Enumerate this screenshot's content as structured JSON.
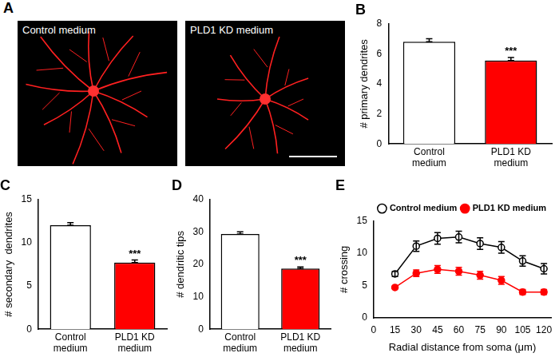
{
  "image_panel": {
    "title": "A",
    "captions": [
      "Control medium",
      "PLD1 KD medium"
    ]
  },
  "chart_data": [
    {
      "type": "bar",
      "title": "B",
      "ylabel": "# primary dendrites",
      "categories": [
        "Control medium",
        "PLD1 KD medium"
      ],
      "values": [
        6.8,
        5.55
      ],
      "errors": [
        0.2,
        0.2
      ],
      "colors": [
        "#ffffff",
        "#ff0000"
      ],
      "ylim": [
        0,
        8
      ],
      "yticks": [
        0,
        2,
        4,
        6,
        8
      ],
      "grid": false,
      "annotations": [
        {
          "category": "PLD1 KD medium",
          "text": "***"
        }
      ]
    },
    {
      "type": "bar",
      "title": "C",
      "ylabel": "# secondary  dendrites",
      "categories": [
        "Control medium",
        "PLD1 KD medium"
      ],
      "values": [
        12.0,
        7.7
      ],
      "errors": [
        0.3,
        0.3
      ],
      "colors": [
        "#ffffff",
        "#ff0000"
      ],
      "ylim": [
        0,
        15
      ],
      "yticks": [
        0,
        5,
        10,
        15
      ],
      "grid": false,
      "annotations": [
        {
          "category": "PLD1 KD medium",
          "text": "***"
        }
      ]
    },
    {
      "type": "bar",
      "title": "D",
      "ylabel": "# dendritic tips",
      "categories": [
        "Control medium",
        "PLD1 KD medium"
      ],
      "values": [
        29.3,
        18.7
      ],
      "errors": [
        0.7,
        0.5
      ],
      "colors": [
        "#ffffff",
        "#ff0000"
      ],
      "ylim": [
        0,
        40
      ],
      "yticks": [
        0,
        10,
        20,
        30,
        40
      ],
      "grid": false,
      "annotations": [
        {
          "category": "PLD1 KD medium",
          "text": "***"
        }
      ]
    },
    {
      "type": "line",
      "title": "E",
      "xlabel": "Radial distance from soma (μm)",
      "ylabel": "# crossing",
      "x": [
        15,
        30,
        45,
        60,
        75,
        90,
        105,
        120
      ],
      "series": [
        {
          "name": "Control medium",
          "color": "#000000",
          "marker": "circle_open",
          "values": [
            6.8,
            11.1,
            12.3,
            12.5,
            11.5,
            10.9,
            8.8,
            7.6
          ],
          "errors": [
            0.4,
            0.8,
            0.9,
            0.9,
            0.9,
            0.9,
            0.8,
            0.8
          ]
        },
        {
          "name": "PLD1 KD medium",
          "color": "#ff0000",
          "marker": "circle",
          "values": [
            4.7,
            6.9,
            7.5,
            7.2,
            6.6,
            5.8,
            4.0,
            4.0
          ],
          "errors": [
            0.2,
            0.5,
            0.6,
            0.6,
            0.6,
            0.6,
            0.4,
            0.4
          ]
        }
      ],
      "xlim": [
        0,
        125
      ],
      "xticks": [
        0,
        15,
        30,
        45,
        60,
        75,
        90,
        105,
        120
      ],
      "ylim": [
        0,
        15
      ],
      "yticks": [
        0,
        5,
        10,
        15
      ],
      "grid": false,
      "legend": "top-right"
    }
  ]
}
